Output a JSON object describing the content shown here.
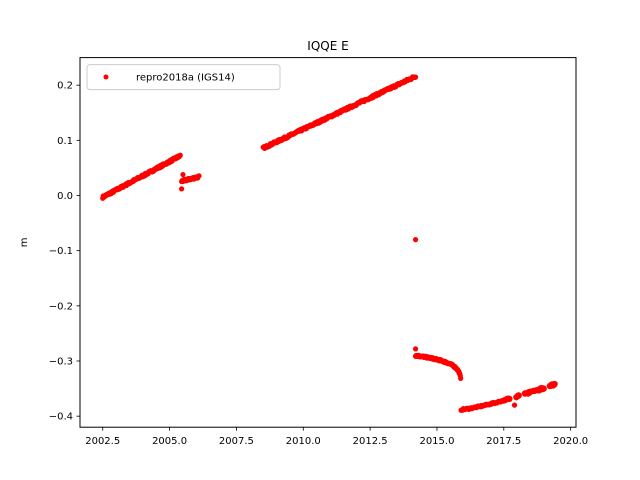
{
  "chart_data": {
    "type": "scatter",
    "title": "IQQE E",
    "xlabel": "",
    "ylabel": "m",
    "xlim": [
      2001.65,
      2020.2
    ],
    "ylim": [
      -0.42,
      0.25
    ],
    "xticks": [
      2002.5,
      2005.0,
      2007.5,
      2010.0,
      2012.5,
      2015.0,
      2017.5,
      2020.0
    ],
    "xtick_labels": [
      "2002.5",
      "2005.0",
      "2007.5",
      "2010.0",
      "2012.5",
      "2015.0",
      "2017.5",
      "2020.0"
    ],
    "yticks": [
      0.2,
      0.1,
      0.0,
      -0.1,
      -0.2,
      -0.3,
      -0.4
    ],
    "ytick_labels": [
      "0.2",
      "0.1",
      "0.0",
      "−0.1",
      "−0.2",
      "−0.3",
      "−0.4"
    ],
    "grid": false,
    "legend": {
      "position": "top-left",
      "entries": [
        "repro2018a (IGS14)"
      ]
    },
    "series_color": "#ff0000",
    "series": [
      {
        "name": "repro2018a (IGS14)",
        "segments": [
          {
            "x_start": 2002.5,
            "y_start": -0.003,
            "x_end": 2005.4,
            "y_end": 0.072
          },
          {
            "x_start": 2005.45,
            "y_start": 0.026,
            "x_end": 2006.1,
            "y_end": 0.034
          },
          {
            "x_start": 2008.5,
            "y_start": 0.086,
            "x_end": 2014.2,
            "y_end": 0.216
          }
        ],
        "outliers": [
          {
            "x": 2014.2,
            "y": -0.08
          },
          {
            "x": 2014.2,
            "y": -0.278
          },
          {
            "x": 2017.9,
            "y": -0.38
          },
          {
            "x": 2005.45,
            "y": 0.012
          },
          {
            "x": 2005.5,
            "y": 0.038
          }
        ],
        "curve": {
          "x_start": 2014.2,
          "y_start": -0.29,
          "x_min": 2015.9,
          "y_min": -0.388,
          "x_end": 2019.4,
          "y_end": -0.342
        }
      }
    ]
  }
}
